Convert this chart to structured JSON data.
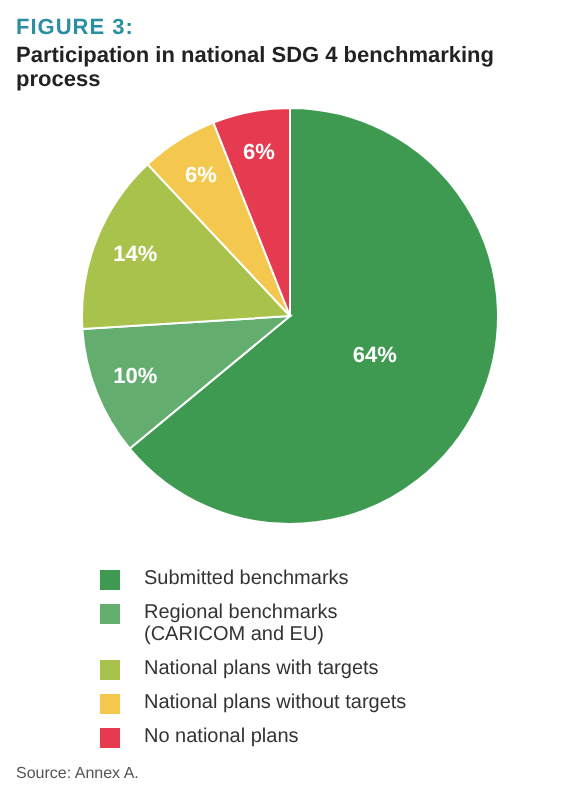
{
  "chart_data": {
    "type": "pie",
    "title": "FIGURE 3:",
    "subtitle": "Participation in national SDG 4 benchmarking process",
    "categories": [
      "Submitted benchmarks",
      "Regional benchmarks (CARICOM and EU)",
      "National plans with targets",
      "National plans without targets",
      "No national plans"
    ],
    "values": [
      64,
      10,
      14,
      6,
      6
    ],
    "colors": [
      "#3d9a50",
      "#63ae6f",
      "#a9c24b",
      "#f4c84e",
      "#e63a50"
    ],
    "value_labels": [
      "64%",
      "10%",
      "14%",
      "6%",
      "6%"
    ],
    "legend": "bottom",
    "annotations": [
      "Source: Annex A."
    ]
  }
}
